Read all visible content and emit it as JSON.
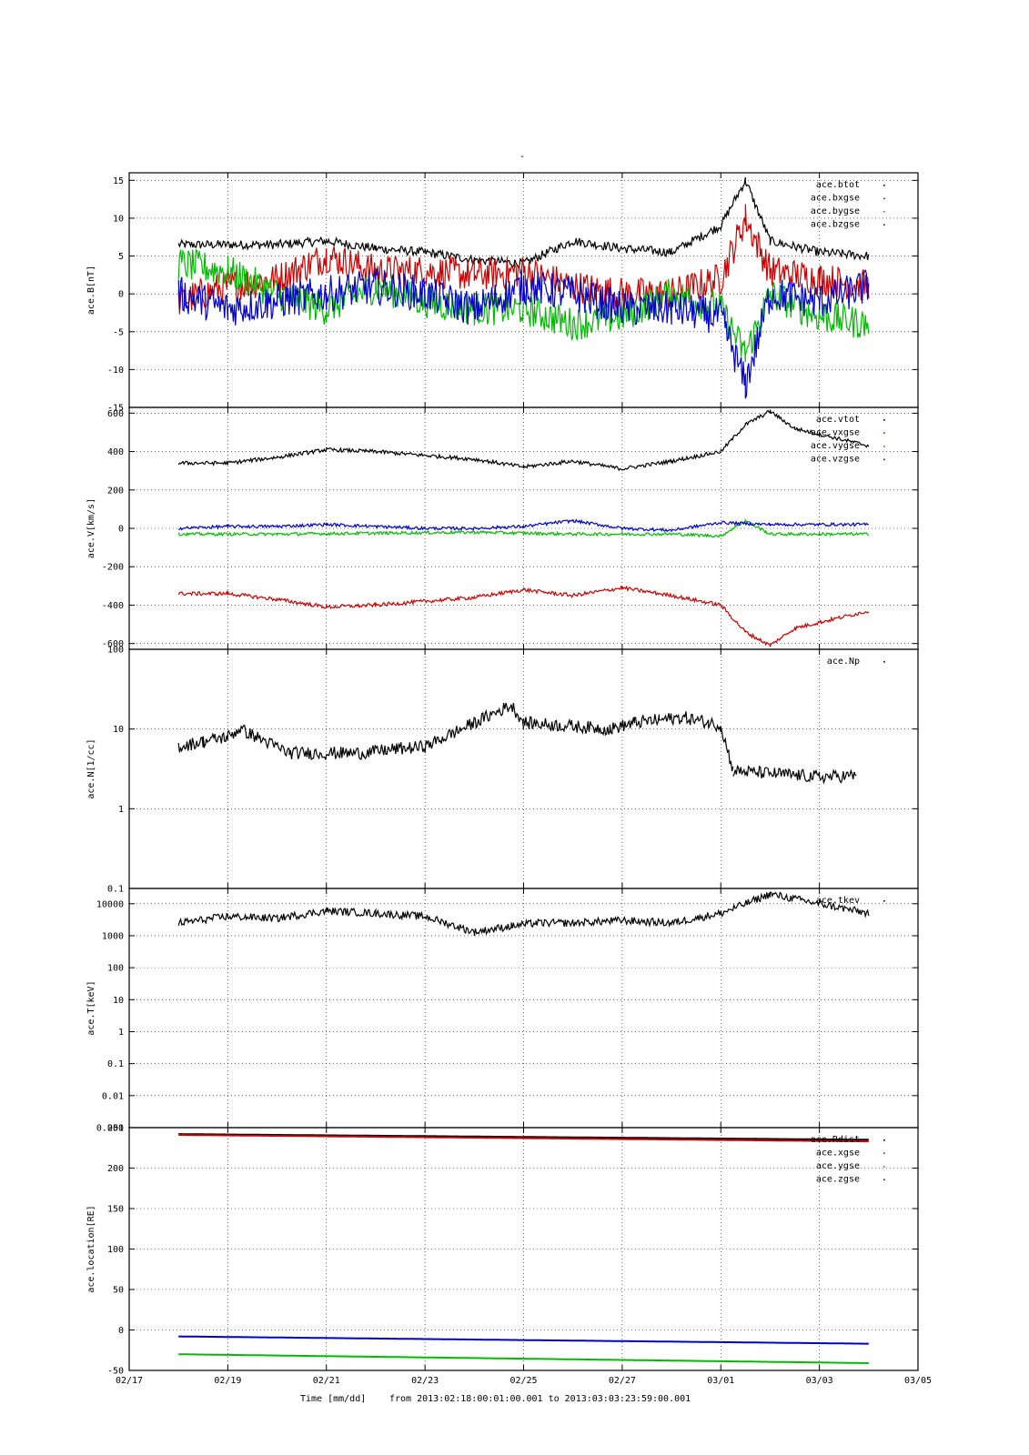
{
  "chart_data": {
    "type": "scatter",
    "title": "-",
    "x_ticks": [
      "02/17",
      "02/19",
      "02/21",
      "02/23",
      "02/25",
      "02/27",
      "03/01",
      "03/03",
      "03/05"
    ],
    "x_start_date": "2013-02-17",
    "x_end_date": "2013-03-05",
    "xlabel": "Time [mm/dd]",
    "range_text": "from 2013:02:18:00:01:00.001  to  2013:03:03:23:59:00.001",
    "colors": {
      "black": "#000000",
      "red": "#cc0000",
      "green": "#00bb00",
      "blue": "#0000cc"
    },
    "panels": [
      {
        "ylabel": "ace.B[nT]",
        "ylim": [
          -15,
          16
        ],
        "scale": "linear",
        "yticks": [
          15,
          10,
          5,
          0,
          -5,
          -10,
          -15
        ],
        "ytick_labels": [
          "15",
          "10",
          "5",
          "0",
          "-5",
          "-10",
          "-15"
        ],
        "series": [
          {
            "name": "ace.btot",
            "color": "black",
            "points": [
              [
                "2013-02-18",
                6.5
              ],
              [
                "2013-02-20",
                6.5
              ],
              [
                "2013-02-21",
                7
              ],
              [
                "2013-02-22",
                6
              ],
              [
                "2013-02-23",
                5.5
              ],
              [
                "2013-02-24",
                4.5
              ],
              [
                "2013-02-25",
                4
              ],
              [
                "2013-02-26",
                7
              ],
              [
                "2013-02-27",
                6
              ],
              [
                "2013-02-28",
                5.5
              ],
              [
                "2013-03-01",
                9
              ],
              [
                "2013-03-01T12",
                15
              ],
              [
                "2013-03-02",
                7
              ],
              [
                "2013-03-03",
                5.5
              ],
              [
                "2013-03-04",
                5
              ]
            ]
          },
          {
            "name": "ace.bxgse",
            "color": "red",
            "points": [
              [
                "2013-02-18",
                -1
              ],
              [
                "2013-02-19",
                1
              ],
              [
                "2013-02-20",
                2
              ],
              [
                "2013-02-21",
                5
              ],
              [
                "2013-02-22",
                3
              ],
              [
                "2013-02-23",
                3
              ],
              [
                "2013-02-24",
                2.5
              ],
              [
                "2013-02-25",
                3
              ],
              [
                "2013-02-26",
                1
              ],
              [
                "2013-02-27",
                0
              ],
              [
                "2013-02-28",
                0
              ],
              [
                "2013-03-01",
                2
              ],
              [
                "2013-03-01T12",
                10
              ],
              [
                "2013-03-02",
                3
              ],
              [
                "2013-03-03",
                2
              ],
              [
                "2013-03-04",
                1
              ]
            ]
          },
          {
            "name": "ace.bygse",
            "color": "green",
            "points": [
              [
                "2013-02-18",
                4
              ],
              [
                "2013-02-19",
                3
              ],
              [
                "2013-02-20",
                0
              ],
              [
                "2013-02-21",
                -2
              ],
              [
                "2013-02-22",
                1
              ],
              [
                "2013-02-23",
                -1
              ],
              [
                "2013-02-24",
                -2
              ],
              [
                "2013-02-25",
                -2
              ],
              [
                "2013-02-26",
                -4
              ],
              [
                "2013-02-27",
                -3
              ],
              [
                "2013-02-28",
                0
              ],
              [
                "2013-03-01",
                -2
              ],
              [
                "2013-03-01T12",
                -8
              ],
              [
                "2013-03-02",
                0
              ],
              [
                "2013-03-03",
                -3
              ],
              [
                "2013-03-04",
                -4
              ]
            ]
          },
          {
            "name": "ace.bzgse",
            "color": "blue",
            "points": [
              [
                "2013-02-18",
                0
              ],
              [
                "2013-02-19",
                -2
              ],
              [
                "2013-02-20",
                -1
              ],
              [
                "2013-02-21",
                0
              ],
              [
                "2013-02-22",
                1
              ],
              [
                "2013-02-23",
                0
              ],
              [
                "2013-02-24",
                -2
              ],
              [
                "2013-02-25",
                1
              ],
              [
                "2013-02-26",
                0
              ],
              [
                "2013-02-27",
                -2
              ],
              [
                "2013-02-28",
                -2
              ],
              [
                "2013-03-01",
                -3
              ],
              [
                "2013-03-01T12",
                -12
              ],
              [
                "2013-03-02",
                0
              ],
              [
                "2013-03-03",
                -1
              ],
              [
                "2013-03-04",
                1
              ]
            ]
          }
        ]
      },
      {
        "ylabel": "ace.V[km/s]",
        "ylim": [
          -630,
          630
        ],
        "scale": "linear",
        "yticks": [
          600,
          400,
          200,
          0,
          -200,
          -400,
          -600
        ],
        "ytick_labels": [
          "600",
          "400",
          "200",
          "0",
          "-200",
          "-400",
          "-600"
        ],
        "series": [
          {
            "name": "ace.vtot",
            "color": "black",
            "points": [
              [
                "2013-02-18",
                340
              ],
              [
                "2013-02-19",
                340
              ],
              [
                "2013-02-20",
                370
              ],
              [
                "2013-02-21",
                410
              ],
              [
                "2013-02-22",
                400
              ],
              [
                "2013-02-23",
                380
              ],
              [
                "2013-02-24",
                360
              ],
              [
                "2013-02-25",
                320
              ],
              [
                "2013-02-26",
                350
              ],
              [
                "2013-02-27",
                310
              ],
              [
                "2013-02-28",
                350
              ],
              [
                "2013-03-01",
                400
              ],
              [
                "2013-03-01T12",
                540
              ],
              [
                "2013-03-02",
                610
              ],
              [
                "2013-03-02T12",
                520
              ],
              [
                "2013-03-03",
                490
              ],
              [
                "2013-03-04",
                430
              ]
            ]
          },
          {
            "name": "ace.vxgse",
            "color": "red",
            "points": [
              [
                "2013-02-18",
                -340
              ],
              [
                "2013-02-19",
                -340
              ],
              [
                "2013-02-20",
                -370
              ],
              [
                "2013-02-21",
                -410
              ],
              [
                "2013-02-22",
                -400
              ],
              [
                "2013-02-23",
                -380
              ],
              [
                "2013-02-24",
                -360
              ],
              [
                "2013-02-25",
                -320
              ],
              [
                "2013-02-26",
                -350
              ],
              [
                "2013-02-27",
                -310
              ],
              [
                "2013-02-28",
                -350
              ],
              [
                "2013-03-01",
                -400
              ],
              [
                "2013-03-01T12",
                -540
              ],
              [
                "2013-03-02",
                -610
              ],
              [
                "2013-03-02T12",
                -520
              ],
              [
                "2013-03-03",
                -490
              ],
              [
                "2013-03-04",
                -430
              ]
            ]
          },
          {
            "name": "ace.vygse",
            "color": "green",
            "points": [
              [
                "2013-02-18",
                -30
              ],
              [
                "2013-02-20",
                -30
              ],
              [
                "2013-02-22",
                -25
              ],
              [
                "2013-02-24",
                -20
              ],
              [
                "2013-02-26",
                -30
              ],
              [
                "2013-02-28",
                -30
              ],
              [
                "2013-03-01",
                -40
              ],
              [
                "2013-03-01T12",
                40
              ],
              [
                "2013-03-02",
                -30
              ],
              [
                "2013-03-04",
                -30
              ]
            ]
          },
          {
            "name": "ace.vzgse",
            "color": "blue",
            "points": [
              [
                "2013-02-18",
                0
              ],
              [
                "2013-02-19",
                10
              ],
              [
                "2013-02-20",
                10
              ],
              [
                "2013-02-21",
                20
              ],
              [
                "2013-02-22",
                10
              ],
              [
                "2013-02-23",
                0
              ],
              [
                "2013-02-24",
                0
              ],
              [
                "2013-02-25",
                10
              ],
              [
                "2013-02-26",
                40
              ],
              [
                "2013-02-27",
                0
              ],
              [
                "2013-02-28",
                -10
              ],
              [
                "2013-03-01",
                30
              ],
              [
                "2013-03-02",
                20
              ],
              [
                "2013-03-04",
                20
              ]
            ]
          }
        ]
      },
      {
        "ylabel": "ace.N[1/cc]",
        "ylim": [
          0.1,
          100
        ],
        "scale": "log",
        "yticks": [
          100,
          10,
          1,
          0.1
        ],
        "ytick_labels": [
          "100",
          "10",
          "1",
          "0.1"
        ],
        "series": [
          {
            "name": "ace.Np",
            "color": "black",
            "points": [
              [
                "2013-02-18",
                6
              ],
              [
                "2013-02-18T12",
                7
              ],
              [
                "2013-02-19",
                8
              ],
              [
                "2013-02-19T06",
                10
              ],
              [
                "2013-02-20T06",
                5
              ],
              [
                "2013-02-21T06",
                5
              ],
              [
                "2013-02-21T18",
                5
              ],
              [
                "2013-02-22T06",
                5.5
              ],
              [
                "2013-02-23",
                6
              ],
              [
                "2013-02-24T18",
                20
              ],
              [
                "2013-02-25",
                12
              ],
              [
                "2013-02-26T18",
                10
              ],
              [
                "2013-02-27T06",
                12
              ],
              [
                "2013-02-27T18",
                13
              ],
              [
                "2013-02-28T06",
                14
              ],
              [
                "2013-02-28T18",
                12
              ],
              [
                "2013-03-01",
                11
              ],
              [
                "2013-03-01T06",
                3
              ],
              [
                "2013-03-03",
                2.5
              ],
              [
                "2013-03-03T18",
                2.6
              ]
            ]
          }
        ]
      },
      {
        "ylabel": "ace.T[keV]",
        "ylim": [
          0.001,
          30000
        ],
        "scale": "log",
        "yticks": [
          10000,
          1000,
          100,
          10,
          1,
          0.1,
          0.01,
          0.001
        ],
        "ytick_labels": [
          "10000",
          "1000",
          "100",
          "10",
          "1",
          "0.1",
          "0.01",
          "0.001"
        ],
        "series": [
          {
            "name": "ace.tkev",
            "color": "black",
            "points": [
              [
                "2013-02-18",
                2500
              ],
              [
                "2013-02-19",
                4000
              ],
              [
                "2013-02-20",
                3500
              ],
              [
                "2013-02-21",
                6000
              ],
              [
                "2013-02-22",
                5000
              ],
              [
                "2013-02-23",
                4000
              ],
              [
                "2013-02-24",
                1300
              ],
              [
                "2013-02-24T18",
                2000
              ],
              [
                "2013-02-25T06",
                2500
              ],
              [
                "2013-02-26",
                2500
              ],
              [
                "2013-02-27",
                3000
              ],
              [
                "2013-02-28",
                2500
              ],
              [
                "2013-03-01",
                5000
              ],
              [
                "2013-03-02",
                20000
              ],
              [
                "2013-03-03",
                10000
              ],
              [
                "2013-03-04",
                5000
              ]
            ]
          }
        ]
      },
      {
        "ylabel": "ace.location[RE]",
        "ylim": [
          -50,
          250
        ],
        "scale": "linear",
        "yticks": [
          250,
          200,
          150,
          100,
          50,
          0,
          -50
        ],
        "ytick_labels": [
          "250",
          "200",
          "150",
          "100",
          "50",
          "0",
          "-50"
        ],
        "series": [
          {
            "name": "ace.Rdist",
            "color": "black",
            "points": [
              [
                "2013-02-18",
                242
              ],
              [
                "2013-03-04",
                235
              ]
            ]
          },
          {
            "name": "ace.xgse",
            "color": "red",
            "points": [
              [
                "2013-02-18",
                241
              ],
              [
                "2013-03-04",
                233
              ]
            ]
          },
          {
            "name": "ace.ygse",
            "color": "green",
            "points": [
              [
                "2013-02-18",
                -30
              ],
              [
                "2013-03-04",
                -41
              ]
            ]
          },
          {
            "name": "ace.zgse",
            "color": "blue",
            "points": [
              [
                "2013-02-18",
                -8
              ],
              [
                "2013-03-04",
                -17
              ]
            ]
          }
        ]
      }
    ]
  }
}
